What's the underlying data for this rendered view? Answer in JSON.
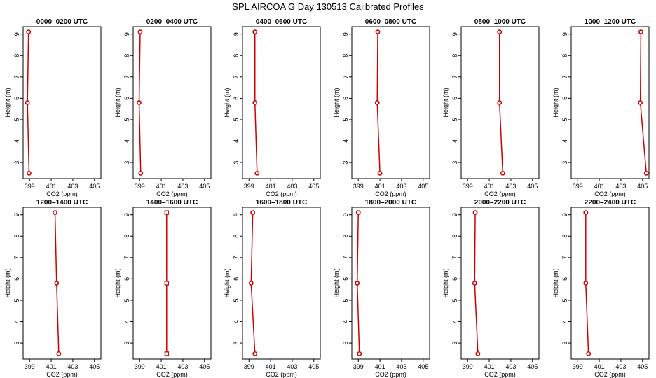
{
  "title": "SPL AIRCOA G  Day 130513  Calibrated Profiles",
  "colors": {
    "series": "#cc0000",
    "axis": "#000000"
  },
  "chart_data": [
    {
      "type": "line",
      "title": "0000–0200 UTC",
      "xlabel": "CO2 (ppm)",
      "ylabel": "Height (m)",
      "xlim": [
        398.4,
        405.6
      ],
      "ylim": [
        2.25,
        9.35
      ],
      "xticks": [
        399,
        401,
        403,
        405
      ],
      "yticks": [
        3,
        4,
        5,
        6,
        7,
        8,
        9
      ],
      "points": [
        {
          "x": 398.9,
          "y": 9.1
        },
        {
          "x": 398.8,
          "y": 5.8
        },
        {
          "x": 398.95,
          "y": 2.5
        }
      ],
      "markers": "circle"
    },
    {
      "type": "line",
      "title": "0200–0400 UTC",
      "xlabel": "CO2 (ppm)",
      "ylabel": "Height (m)",
      "xlim": [
        398.4,
        405.6
      ],
      "ylim": [
        2.25,
        9.35
      ],
      "xticks": [
        399,
        401,
        403,
        405
      ],
      "yticks": [
        3,
        4,
        5,
        6,
        7,
        8,
        9
      ],
      "points": [
        {
          "x": 399.05,
          "y": 9.1
        },
        {
          "x": 398.95,
          "y": 5.8
        },
        {
          "x": 399.1,
          "y": 2.5
        }
      ],
      "markers": "circle"
    },
    {
      "type": "line",
      "title": "0400–0600 UTC",
      "xlabel": "CO2 (ppm)",
      "ylabel": "Height (m)",
      "xlim": [
        398.4,
        405.6
      ],
      "ylim": [
        2.25,
        9.35
      ],
      "xticks": [
        399,
        401,
        403,
        405
      ],
      "yticks": [
        3,
        4,
        5,
        6,
        7,
        8,
        9
      ],
      "points": [
        {
          "x": 399.55,
          "y": 9.1
        },
        {
          "x": 399.55,
          "y": 5.8
        },
        {
          "x": 399.75,
          "y": 2.5
        }
      ],
      "markers": "circle"
    },
    {
      "type": "line",
      "title": "0600–0800 UTC",
      "xlabel": "CO2 (ppm)",
      "ylabel": "Height (m)",
      "xlim": [
        398.4,
        405.6
      ],
      "ylim": [
        2.25,
        9.35
      ],
      "xticks": [
        399,
        401,
        403,
        405
      ],
      "yticks": [
        3,
        4,
        5,
        6,
        7,
        8,
        9
      ],
      "points": [
        {
          "x": 400.8,
          "y": 9.1
        },
        {
          "x": 400.75,
          "y": 5.8
        },
        {
          "x": 401.0,
          "y": 2.5
        }
      ],
      "markers": "circle"
    },
    {
      "type": "line",
      "title": "0800–1000 UTC",
      "xlabel": "CO2 (ppm)",
      "ylabel": "Height (m)",
      "xlim": [
        398.4,
        405.6
      ],
      "ylim": [
        2.25,
        9.35
      ],
      "xticks": [
        399,
        401,
        403,
        405
      ],
      "yticks": [
        3,
        4,
        5,
        6,
        7,
        8,
        9
      ],
      "points": [
        {
          "x": 401.95,
          "y": 9.1
        },
        {
          "x": 401.95,
          "y": 5.8
        },
        {
          "x": 402.25,
          "y": 2.5
        }
      ],
      "markers": "circle"
    },
    {
      "type": "line",
      "title": "1000–1200 UTC",
      "xlabel": "CO2 (ppm)",
      "ylabel": "Height (m)",
      "xlim": [
        398.4,
        405.6
      ],
      "ylim": [
        2.25,
        9.35
      ],
      "xticks": [
        399,
        401,
        403,
        405
      ],
      "yticks": [
        3,
        4,
        5,
        6,
        7,
        8,
        9
      ],
      "points": [
        {
          "x": 404.85,
          "y": 9.1
        },
        {
          "x": 404.8,
          "y": 5.8
        },
        {
          "x": 405.35,
          "y": 2.5
        }
      ],
      "markers": "circle"
    },
    {
      "type": "line",
      "title": "1200–1400 UTC",
      "xlabel": "CO2 (ppm)",
      "ylabel": "Height (m)",
      "xlim": [
        398.4,
        405.6
      ],
      "ylim": [
        2.25,
        9.35
      ],
      "xticks": [
        399,
        401,
        403,
        405
      ],
      "yticks": [
        3,
        4,
        5,
        6,
        7,
        8,
        9
      ],
      "points": [
        {
          "x": 401.35,
          "y": 9.1
        },
        {
          "x": 401.5,
          "y": 5.8
        },
        {
          "x": 401.7,
          "y": 2.5
        }
      ],
      "markers": "circle"
    },
    {
      "type": "line",
      "title": "1400–1600 UTC",
      "xlabel": "CO2 (ppm)",
      "ylabel": "Height (m)",
      "xlim": [
        398.4,
        405.6
      ],
      "ylim": [
        2.25,
        9.35
      ],
      "xticks": [
        399,
        401,
        403,
        405
      ],
      "yticks": [
        3,
        4,
        5,
        6,
        7,
        8,
        9
      ],
      "points": [
        {
          "x": 401.5,
          "y": 9.1
        },
        {
          "x": 401.5,
          "y": 5.8
        },
        {
          "x": 401.5,
          "y": 2.5
        }
      ],
      "markers": "square"
    },
    {
      "type": "line",
      "title": "1600–1800 UTC",
      "xlabel": "CO2 (ppm)",
      "ylabel": "Height (m)",
      "xlim": [
        398.4,
        405.6
      ],
      "ylim": [
        2.25,
        9.35
      ],
      "xticks": [
        399,
        401,
        403,
        405
      ],
      "yticks": [
        3,
        4,
        5,
        6,
        7,
        8,
        9
      ],
      "points": [
        {
          "x": 399.35,
          "y": 9.1
        },
        {
          "x": 399.2,
          "y": 5.8
        },
        {
          "x": 399.55,
          "y": 2.5
        }
      ],
      "markers": "circle"
    },
    {
      "type": "line",
      "title": "1800–2000 UTC",
      "xlabel": "CO2 (ppm)",
      "ylabel": "Height (m)",
      "xlim": [
        398.4,
        405.6
      ],
      "ylim": [
        2.25,
        9.35
      ],
      "xticks": [
        399,
        401,
        403,
        405
      ],
      "yticks": [
        3,
        4,
        5,
        6,
        7,
        8,
        9
      ],
      "points": [
        {
          "x": 399.0,
          "y": 9.1
        },
        {
          "x": 398.9,
          "y": 5.8
        },
        {
          "x": 399.1,
          "y": 2.5
        }
      ],
      "markers": "circle"
    },
    {
      "type": "line",
      "title": "2000–2200 UTC",
      "xlabel": "CO2 (ppm)",
      "ylabel": "Height (m)",
      "xlim": [
        398.4,
        405.6
      ],
      "ylim": [
        2.25,
        9.35
      ],
      "xticks": [
        399,
        401,
        403,
        405
      ],
      "yticks": [
        3,
        4,
        5,
        6,
        7,
        8,
        9
      ],
      "points": [
        {
          "x": 399.7,
          "y": 9.1
        },
        {
          "x": 399.65,
          "y": 5.8
        },
        {
          "x": 399.95,
          "y": 2.5
        }
      ],
      "markers": "circle"
    },
    {
      "type": "line",
      "title": "2200–2400 UTC",
      "xlabel": "CO2 (ppm)",
      "ylabel": "Height (m)",
      "xlim": [
        398.4,
        405.6
      ],
      "ylim": [
        2.25,
        9.35
      ],
      "xticks": [
        399,
        401,
        403,
        405
      ],
      "yticks": [
        3,
        4,
        5,
        6,
        7,
        8,
        9
      ],
      "points": [
        {
          "x": 399.75,
          "y": 9.1
        },
        {
          "x": 399.75,
          "y": 5.8
        },
        {
          "x": 400.0,
          "y": 2.5
        }
      ],
      "markers": "circle"
    }
  ]
}
